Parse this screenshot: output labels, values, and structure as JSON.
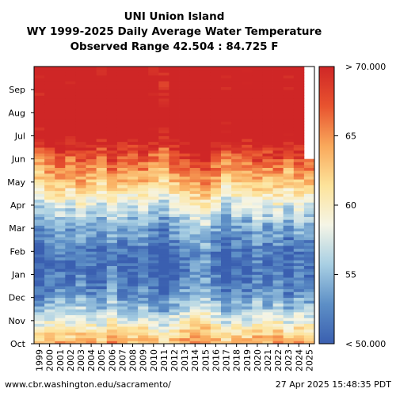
{
  "chart_data": {
    "type": "heatmap",
    "title_lines": [
      "UNI Union Island",
      "WY 1999-2025 Daily Average Water Temperature",
      "Observed Range 42.504 : 84.725 F"
    ],
    "x_categories": [
      "1999",
      "2000",
      "2001",
      "2002",
      "2003",
      "2004",
      "2005",
      "2006",
      "2007",
      "2008",
      "2009",
      "2010",
      "2011",
      "2012",
      "2013",
      "2014",
      "2015",
      "2016",
      "2017",
      "2018",
      "2019",
      "2020",
      "2021",
      "2022",
      "2023",
      "2024",
      "2025"
    ],
    "y_months": [
      "Oct",
      "Nov",
      "Dec",
      "Jan",
      "Feb",
      "Mar",
      "Apr",
      "May",
      "Jun",
      "Jul",
      "Aug",
      "Sep"
    ],
    "colorbar": {
      "min": 50,
      "max": 70,
      "ticks": [
        55,
        60,
        65
      ],
      "min_label": "< 50.000",
      "max_label": "> 70.000",
      "colors": [
        "#3a5fb0",
        "#5d8fc6",
        "#a8cfe3",
        "#f5f5e6",
        "#fde39a",
        "#f9a85b",
        "#e8532f",
        "#cf2626"
      ]
    },
    "monthly_avg_temp": [
      64,
      58,
      53,
      51,
      51.5,
      54,
      58,
      63,
      67,
      72,
      74,
      72
    ],
    "year_offsets": [
      -1.5,
      0,
      0.5,
      -0.5,
      1,
      0,
      -1,
      1.5,
      0,
      -0.5,
      0.5,
      -1,
      -2,
      0,
      1,
      2,
      2.5,
      0.5,
      -1.5,
      0,
      -0.5,
      1,
      0,
      1,
      -1,
      0.5,
      0
    ],
    "last_year_end_month": 7.9
  },
  "footer": {
    "source": "www.cbr.washington.edu/sacramento/",
    "timestamp": "27 Apr 2025 15:48:35 PDT"
  }
}
